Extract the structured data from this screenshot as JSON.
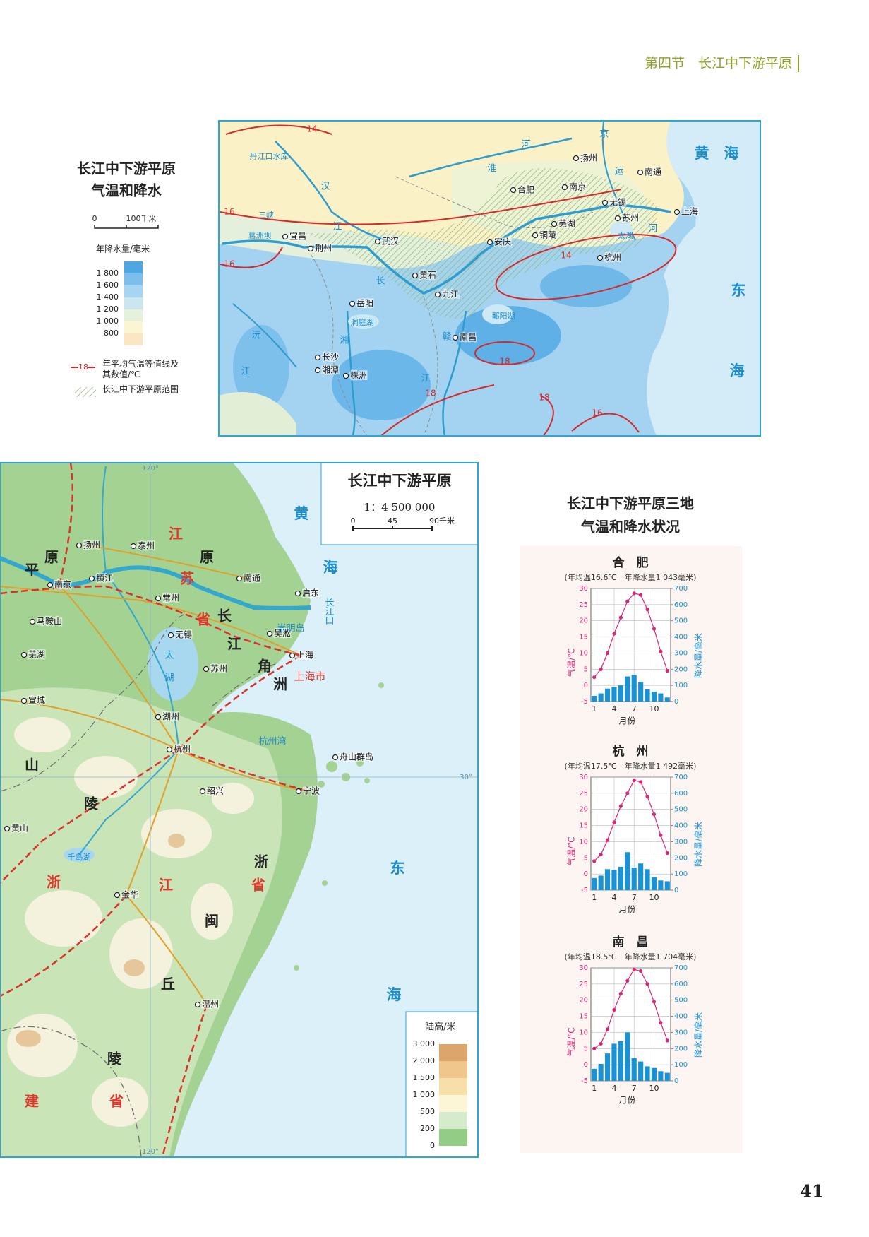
{
  "header": {
    "section": "第四节　长江中下游平原"
  },
  "page_number": "41",
  "top_map": {
    "title": [
      "长江中下游平原",
      "气温和降水"
    ],
    "scale": [
      "0",
      "100千米"
    ],
    "precip_legend": {
      "title": "年降水量/毫米",
      "levels": [
        {
          "value": 1800,
          "label": "1 800"
        },
        {
          "value": 1600,
          "label": "1 600"
        },
        {
          "value": 1400,
          "label": "1 400"
        },
        {
          "value": 1200,
          "label": "1 200"
        },
        {
          "value": 1000,
          "label": "1 000"
        },
        800
      ],
      "colors": [
        "#4ea6e2",
        "#7cbfec",
        "#a6d4f1",
        "#cbe6ee",
        "#e6f1dc",
        "#fcf5d2",
        "#fbe6c4"
      ]
    },
    "isotherm_legend": {
      "sample": "18",
      "text": "年平均气温等值线及其数值/℃"
    },
    "plain_legend": "长江中下游平原范围",
    "labels": [
      "京",
      "黄　海",
      "东",
      "海",
      "扬州",
      "南通",
      "合肥",
      "南京",
      "无锡",
      "苏州",
      "上海",
      "芜湖",
      "铜陵",
      "安庆",
      "杭州",
      "宜昌",
      "荆州",
      "武汉",
      "黄石",
      "九江",
      "岳阳",
      "南昌",
      "长沙",
      "湘潭",
      "株洲",
      "丹江口水库",
      "汉",
      "江",
      "淮",
      "河",
      "长",
      "湘",
      "沅",
      "江",
      "赣",
      "江",
      "运",
      "河",
      "太湖",
      "鄱阳湖",
      "洞庭湖",
      "三峡",
      "葛洲坝",
      "14",
      "16",
      "16",
      "14",
      "18",
      "18",
      "18",
      "16"
    ]
  },
  "bottom_map": {
    "title": "长江中下游平原",
    "scale_text": "1：4 500 000",
    "scale": [
      "0",
      "45",
      "90千米"
    ],
    "elevation_legend": {
      "title": "陆高/米",
      "levels": [
        {
          "value": 3000,
          "label": "3 000"
        },
        {
          "value": 2000,
          "label": "2 000"
        },
        {
          "value": 1500,
          "label": "1 500"
        },
        {
          "value": 1000,
          "label": "1 000"
        },
        500,
        200,
        0
      ],
      "colors": [
        "#dba56c",
        "#f0c68c",
        "#f7dfaa",
        "#fcf5d6",
        "#d5ebcb",
        "#93cc85"
      ]
    },
    "labels": [
      "黄",
      "海",
      "东",
      "海",
      "扬州",
      "泰州",
      "南通",
      "南京",
      "镇江",
      "启东",
      "常州",
      "马鞍山",
      "无锡",
      "吴淞",
      "上海",
      "芜湖",
      "苏州",
      "宣城",
      "湖州",
      "杭州",
      "绍兴",
      "宁波",
      "舟山群岛",
      "金华",
      "温州",
      "黄山",
      "江",
      "苏",
      "省",
      "上海市",
      "浙",
      "江",
      "省",
      "建",
      "省",
      "平",
      "原",
      "原",
      "长",
      "江",
      "角",
      "洲",
      "山",
      "陵",
      "浙",
      "闽",
      "丘",
      "陵",
      "崇明岛",
      "长江口",
      "杭州湾",
      "太",
      "湖",
      "千岛湖",
      "120°",
      "30°",
      "120°"
    ]
  },
  "climate": {
    "title": [
      "长江中下游平原三地",
      "气温和降水状况"
    ],
    "charts": [
      {
        "name": "合　肥",
        "note": "(年均温16.6℃　年降水量1 043毫米)",
        "y_label": "气温/℃",
        "y2_label": "降水量/毫米",
        "x_label": "月份",
        "x": [
          1,
          2,
          3,
          4,
          5,
          6,
          7,
          8,
          9,
          10,
          11,
          12
        ],
        "xlim": [
          0.5,
          12.5
        ],
        "xticks": [
          1,
          4,
          7,
          10
        ],
        "temps": [
          2.5,
          5,
          10,
          16,
          21,
          26,
          28.5,
          28,
          23.5,
          17.5,
          10.5,
          4.5
        ],
        "precip": [
          35,
          50,
          80,
          90,
          100,
          155,
          165,
          120,
          75,
          60,
          50,
          25
        ],
        "ylim": [
          -5,
          30
        ],
        "yticks": [
          -5,
          0,
          5,
          10,
          15,
          20,
          25,
          30
        ],
        "y2lim": [
          0,
          700
        ],
        "y2ticks": [
          0,
          100,
          200,
          300,
          400,
          500,
          600,
          700
        ],
        "temp_color": "#d6287a",
        "precip_color": "#1a93d6"
      },
      {
        "name": "杭　州",
        "note": "(年均温17.5℃　年降水量1 492毫米)",
        "y_label": "气温/℃",
        "y2_label": "降水量/毫米",
        "x_label": "月份",
        "x": [
          1,
          2,
          3,
          4,
          5,
          6,
          7,
          8,
          9,
          10,
          11,
          12
        ],
        "xlim": [
          0.5,
          12.5
        ],
        "xticks": [
          1,
          4,
          7,
          10
        ],
        "temps": [
          4,
          6,
          10.5,
          16,
          21,
          25,
          29,
          28.5,
          24,
          18.5,
          12,
          6.5
        ],
        "precip": [
          75,
          90,
          130,
          125,
          145,
          235,
          140,
          165,
          130,
          80,
          60,
          55
        ],
        "ylim": [
          -5,
          30
        ],
        "yticks": [
          -5,
          0,
          5,
          10,
          15,
          20,
          25,
          30
        ],
        "y2lim": [
          0,
          700
        ],
        "y2ticks": [
          0,
          100,
          200,
          300,
          400,
          500,
          600,
          700
        ],
        "temp_color": "#d6287a",
        "precip_color": "#1a93d6"
      },
      {
        "name": "南　昌",
        "note": "(年均温18.5℃　年降水量1 704毫米)",
        "y_label": "气温/℃",
        "y2_label": "降水量/毫米",
        "x_label": "月份",
        "x": [
          1,
          2,
          3,
          4,
          5,
          6,
          7,
          8,
          9,
          10,
          11,
          12
        ],
        "xlim": [
          0.5,
          12.5
        ],
        "xticks": [
          1,
          4,
          7,
          10
        ],
        "temps": [
          5,
          6.5,
          11,
          17,
          22,
          26,
          29.5,
          29,
          25,
          19.5,
          13,
          7.5
        ],
        "precip": [
          75,
          105,
          170,
          230,
          245,
          300,
          140,
          120,
          90,
          80,
          60,
          50
        ],
        "ylim": [
          -5,
          30
        ],
        "yticks": [
          -5,
          0,
          5,
          10,
          15,
          20,
          25,
          30
        ],
        "y2lim": [
          0,
          700
        ],
        "y2ticks": [
          0,
          100,
          200,
          300,
          400,
          500,
          600,
          700
        ],
        "temp_color": "#d6287a",
        "precip_color": "#1a93d6"
      }
    ]
  }
}
